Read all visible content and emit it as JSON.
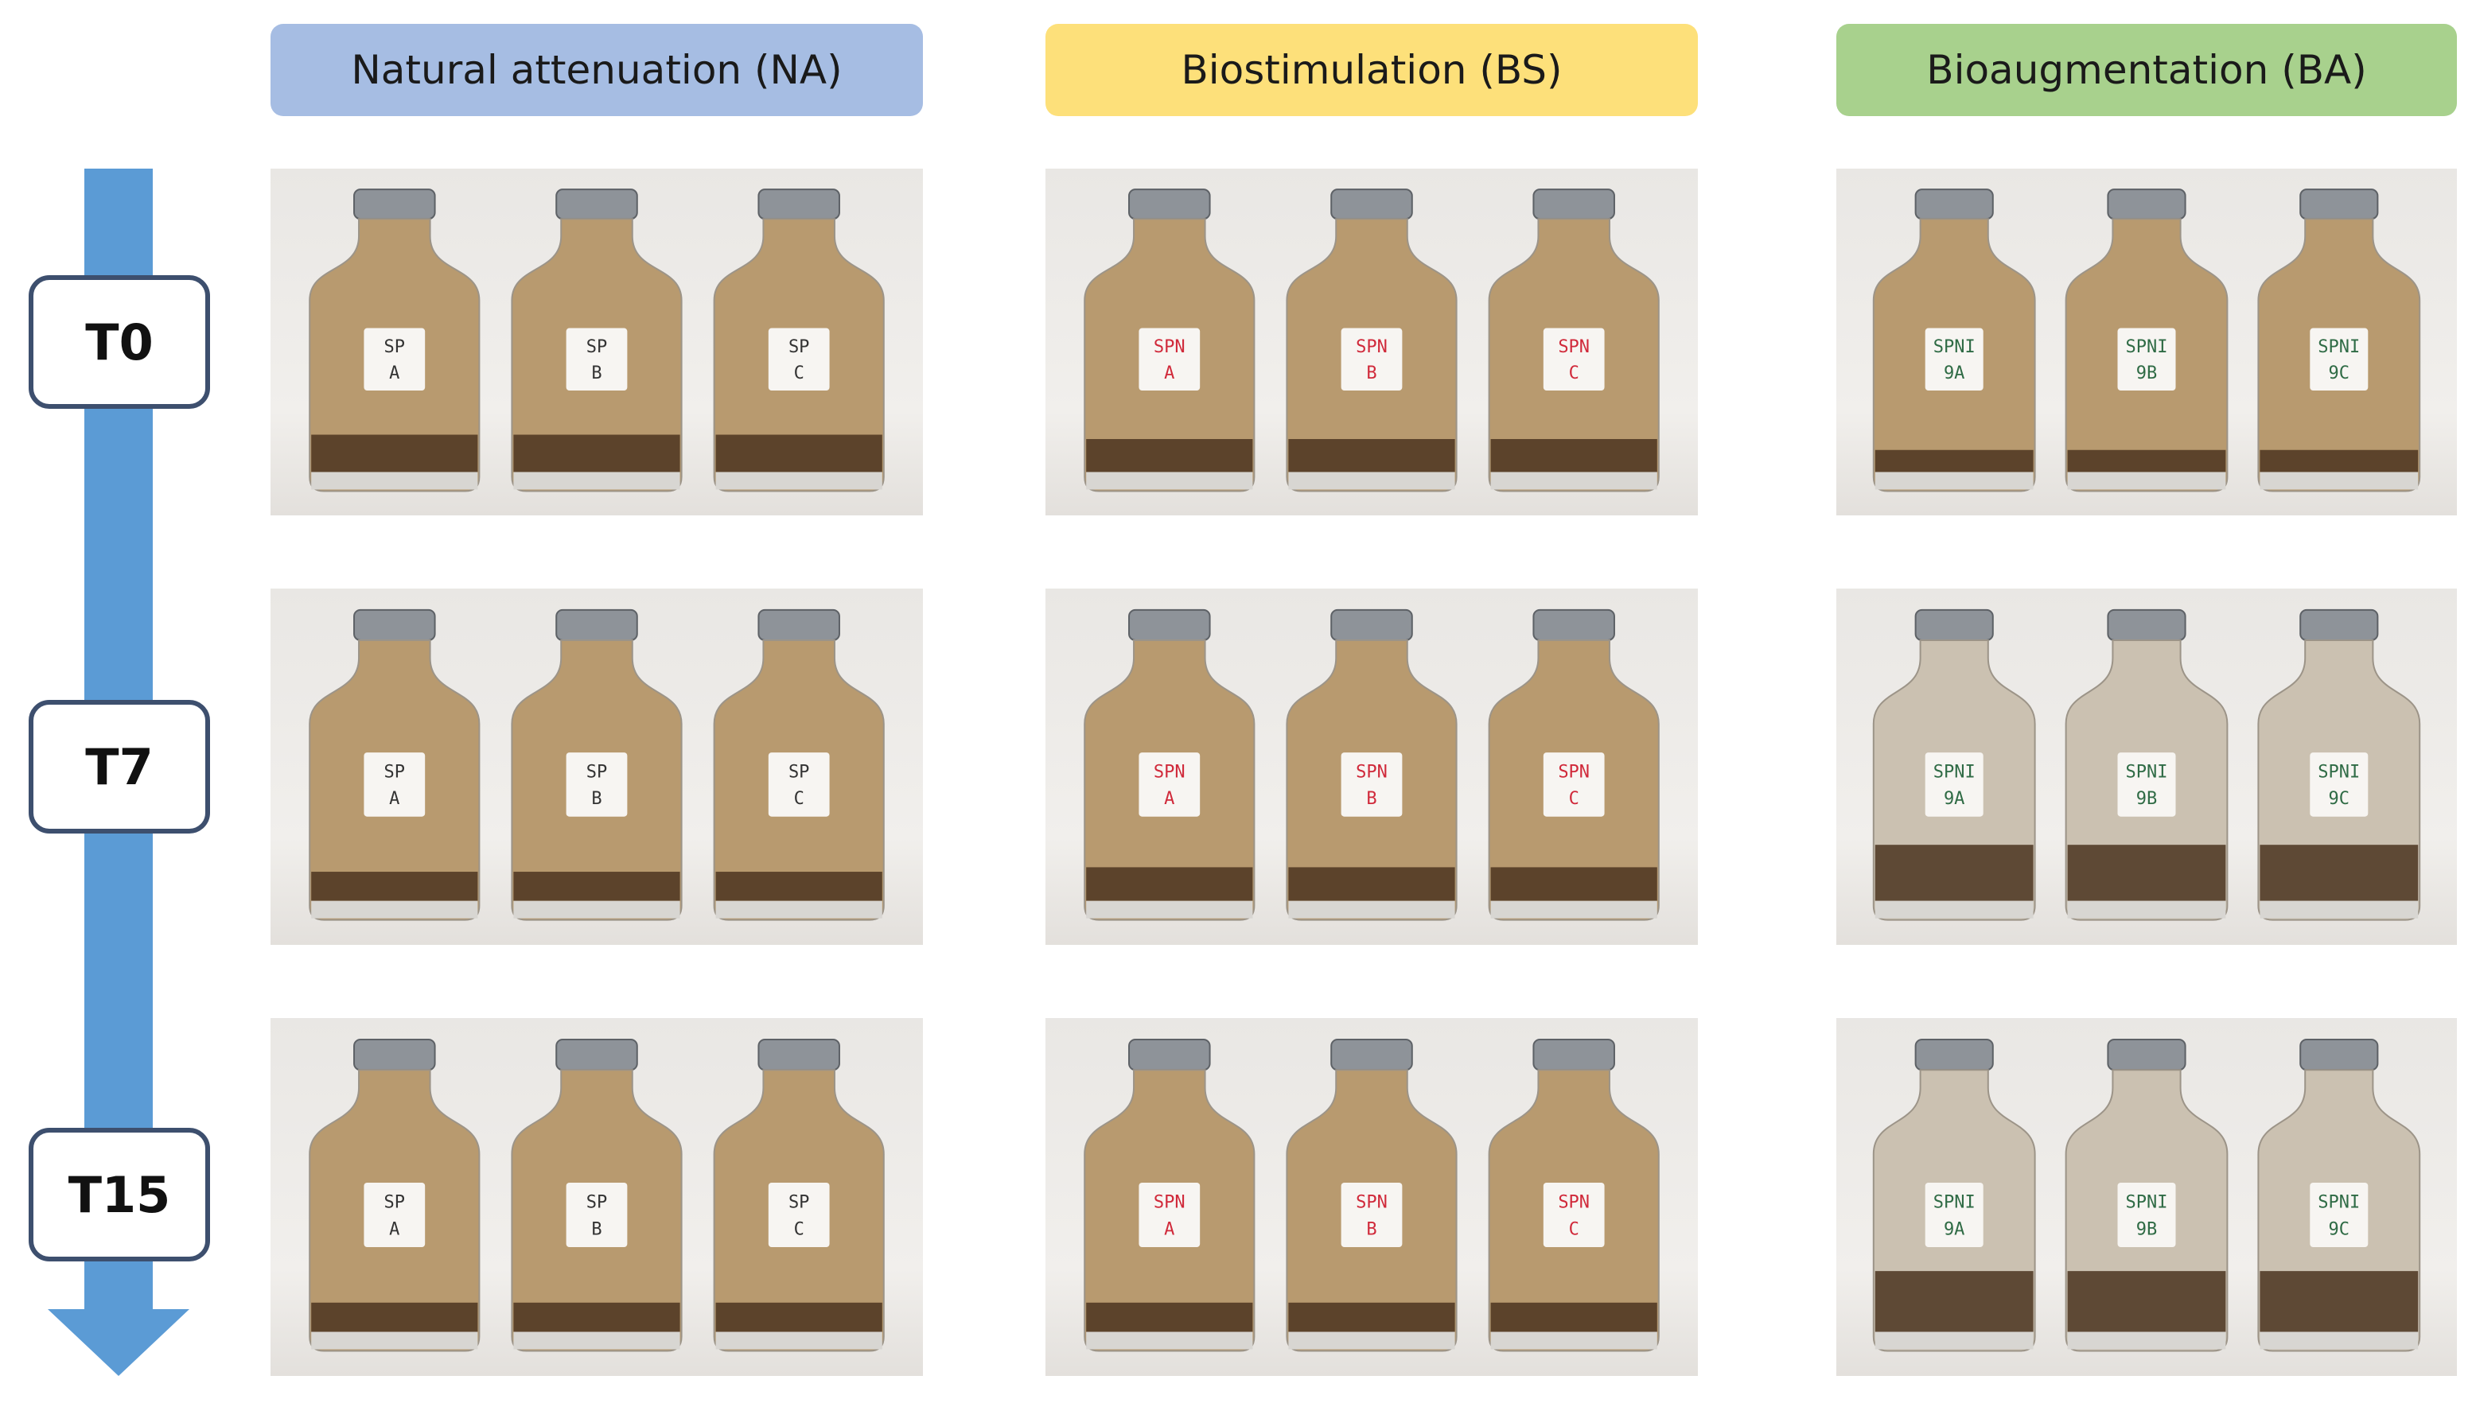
{
  "columns": [
    {
      "id": "na",
      "title": "Natural attenuation (NA)",
      "color": "#a6bde3",
      "label_ink": "#333333",
      "labels": [
        [
          "SP",
          "A"
        ],
        [
          "SP",
          "B"
        ],
        [
          "SP",
          "C"
        ]
      ]
    },
    {
      "id": "bs",
      "title": "Biostimulation (BS)",
      "color": "#fde07a",
      "label_ink": "#d0293a",
      "labels": [
        [
          "SPN",
          "A"
        ],
        [
          "SPN",
          "B"
        ],
        [
          "SPN",
          "C"
        ]
      ]
    },
    {
      "id": "ba",
      "title": "Bioaugmentation (BA)",
      "color": "#a8d18d",
      "label_ink": "#2f6b45",
      "labels": [
        [
          "SPNI",
          "9A"
        ],
        [
          "SPNI",
          "9B"
        ],
        [
          "SPNI",
          "9C"
        ]
      ]
    }
  ],
  "timepoints": [
    "T0",
    "T7",
    "T15"
  ],
  "arrow_color": "#5b9bd5",
  "liquid_level": {
    "na": [
      0.12,
      0.08,
      0.08
    ],
    "bs": [
      0.1,
      0.1,
      0.08
    ],
    "ba": [
      0.05,
      0.2,
      0.22
    ]
  }
}
